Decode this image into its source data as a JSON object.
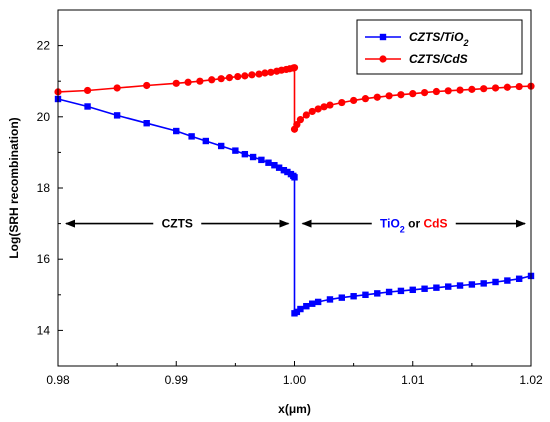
{
  "chart_data": {
    "type": "line",
    "xlabel": "x(μm)",
    "ylabel": "Log(SRH recombination)",
    "xlim": [
      0.98,
      1.02
    ],
    "ylim": [
      13.0,
      23.0
    ],
    "xticks": [
      "0.98",
      "0.99",
      "1.00",
      "1.01",
      "1.02"
    ],
    "yticks": [
      "14",
      "16",
      "18",
      "20",
      "22"
    ],
    "legend_position": "top-right",
    "series": [
      {
        "name": "CZTS/TiO",
        "name_subscript": "2",
        "color": "#0000ff",
        "marker": "square",
        "x": [
          0.98,
          0.9825,
          0.985,
          0.9875,
          0.99,
          0.9913,
          0.9925,
          0.9938,
          0.995,
          0.9958,
          0.9965,
          0.9972,
          0.9978,
          0.9983,
          0.9987,
          0.9991,
          0.9994,
          0.9997,
          0.9999,
          1.0,
          1.0,
          1.0002,
          1.0005,
          1.001,
          1.0015,
          1.002,
          1.003,
          1.004,
          1.005,
          1.006,
          1.007,
          1.008,
          1.009,
          1.01,
          1.011,
          1.012,
          1.013,
          1.014,
          1.015,
          1.016,
          1.017,
          1.018,
          1.019,
          1.02
        ],
        "y": [
          20.5,
          20.29,
          20.04,
          19.82,
          19.6,
          19.45,
          19.32,
          19.18,
          19.05,
          18.95,
          18.87,
          18.79,
          18.71,
          18.64,
          18.57,
          18.5,
          18.45,
          18.39,
          18.34,
          18.3,
          14.48,
          14.52,
          14.6,
          14.68,
          14.75,
          14.8,
          14.87,
          14.92,
          14.96,
          15.0,
          15.04,
          15.08,
          15.11,
          15.14,
          15.17,
          15.2,
          15.23,
          15.26,
          15.29,
          15.32,
          15.36,
          15.4,
          15.45,
          15.53
        ]
      },
      {
        "name": "CZTS/CdS",
        "color": "#ff0000",
        "marker": "circle",
        "x": [
          0.98,
          0.9825,
          0.985,
          0.9875,
          0.99,
          0.991,
          0.992,
          0.993,
          0.9938,
          0.9945,
          0.9952,
          0.9958,
          0.9964,
          0.997,
          0.9975,
          0.998,
          0.9985,
          0.9989,
          0.9993,
          0.9996,
          0.9999,
          1.0,
          1.0,
          1.0002,
          1.0005,
          1.001,
          1.0015,
          1.002,
          1.0025,
          1.003,
          1.004,
          1.005,
          1.006,
          1.007,
          1.008,
          1.009,
          1.01,
          1.011,
          1.012,
          1.013,
          1.014,
          1.015,
          1.016,
          1.017,
          1.018,
          1.019,
          1.02
        ],
        "y": [
          20.7,
          20.74,
          20.81,
          20.88,
          20.94,
          20.97,
          21.0,
          21.04,
          21.07,
          21.1,
          21.13,
          21.15,
          21.18,
          21.2,
          21.23,
          21.25,
          21.28,
          21.31,
          21.33,
          21.35,
          21.37,
          21.38,
          19.65,
          19.78,
          19.92,
          20.05,
          20.15,
          20.22,
          20.28,
          20.33,
          20.4,
          20.46,
          20.51,
          20.55,
          20.59,
          20.62,
          20.65,
          20.68,
          20.71,
          20.73,
          20.75,
          20.77,
          20.79,
          20.81,
          20.83,
          20.85,
          20.86
        ]
      }
    ],
    "annotations": [
      {
        "text": "CZTS",
        "color": "#000000",
        "arrow_from": 0.98,
        "arrow_to": 1.0,
        "y": 17.0
      },
      {
        "text_parts": [
          {
            "text": "TiO",
            "color": "#0000ff"
          },
          {
            "text": "2",
            "color": "#0000ff",
            "subscript": true
          },
          {
            "text": " or ",
            "color": "#000000"
          },
          {
            "text": "CdS",
            "color": "#ff0000"
          }
        ],
        "arrow_from": 1.0,
        "arrow_to": 1.02,
        "y": 17.0
      }
    ]
  }
}
